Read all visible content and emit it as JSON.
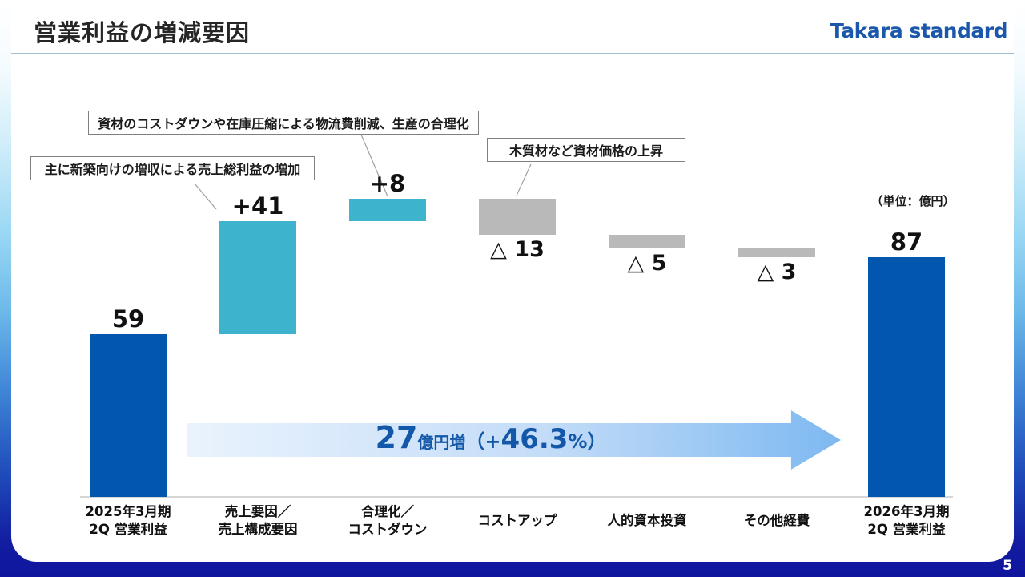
{
  "slide": {
    "title": "営業利益の増減要因",
    "logo_text": "Takara standard",
    "unit_label": "（単位：億円）",
    "page_number": "5"
  },
  "callouts": {
    "sales": "主に新築向けの増収による売上総利益の増加",
    "rationalization": "資材のコストダウンや在庫圧縮による物流費削減、生産の合理化",
    "cost_up": "木質材など資材価格の上昇"
  },
  "summary_arrow": {
    "amount": "27",
    "amount_unit": "億円増",
    "paren_open": "（+",
    "percent": "46.3",
    "paren_close": "%）"
  },
  "chart_data": {
    "type": "bar",
    "subtype": "waterfall",
    "title": "営業利益の増減要因",
    "unit": "億円",
    "ylim": [
      0,
      115
    ],
    "grid": false,
    "categories": [
      "2025年3月期\n2Q 営業利益",
      "売上要因／\n売上構成要因",
      "合理化／\nコストダウン",
      "コストアップ",
      "人的資本投資",
      "その他経費",
      "2026年3月期\n2Q 営業利益"
    ],
    "values": [
      59,
      41,
      8,
      -13,
      -5,
      -3,
      87
    ],
    "bar_roles": [
      "total",
      "increase",
      "increase",
      "decrease",
      "decrease",
      "decrease",
      "total"
    ],
    "value_labels": [
      "59",
      "+41",
      "+8",
      "△ 13",
      "△ 5",
      "△ 3",
      "87"
    ],
    "cumulative_levels": [
      59,
      100,
      108,
      95,
      90,
      87,
      87
    ],
    "change_summary": "27億円増（+46.3%）",
    "colors": {
      "total": "#0057ad",
      "increase": "#3eb3ce",
      "decrease": "#b9b9b9"
    }
  }
}
